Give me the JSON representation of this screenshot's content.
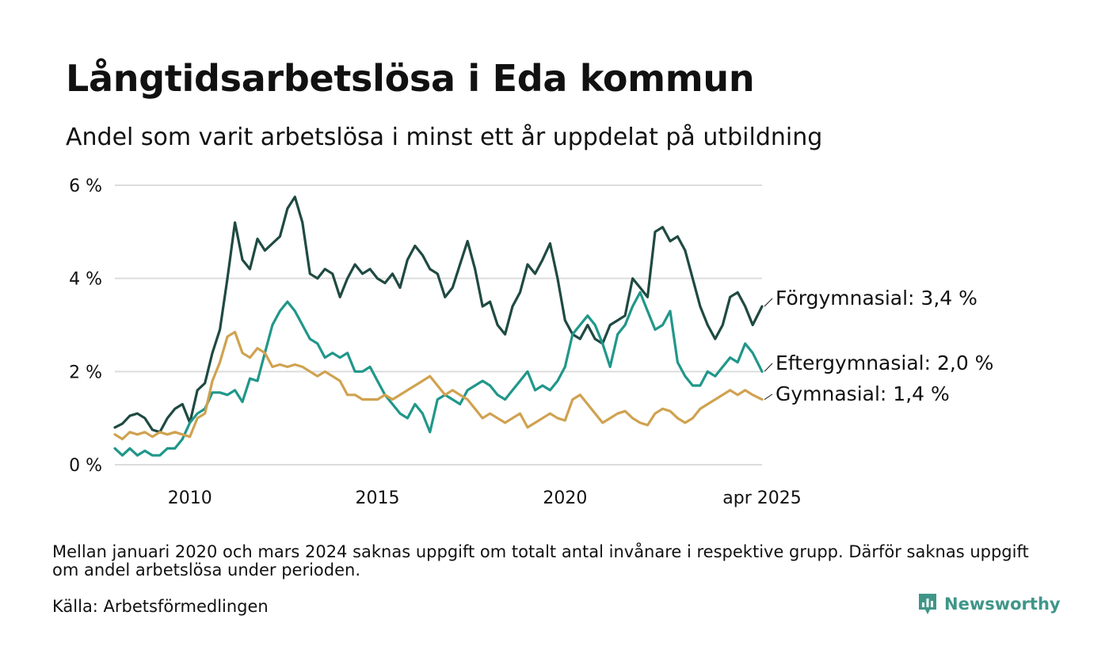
{
  "title": "Långtidsarbetslösa i Eda kommun",
  "subtitle": "Andel som varit arbetslösa i minst ett år uppdelat på utbildning",
  "note": "Mellan januari 2020 och mars 2024 saknas uppgift om totalt antal invånare i respektive grupp. Därför saknas uppgift om andel arbetslösa under perioden.",
  "source": "Källa: Arbetsförmedlingen",
  "brand": {
    "name": "Newsworthy",
    "icon": "newsworthy-logo-icon",
    "color": "#3f9688"
  },
  "chart_data": {
    "type": "line",
    "title": "Långtidsarbetslösa i Eda kommun",
    "subtitle": "Andel som varit arbetslösa i minst ett år uppdelat på utbildning",
    "x_unit": "year",
    "xlim": [
      2008.0,
      2025.25
    ],
    "ylim": [
      0,
      6
    ],
    "y_ticks": [
      {
        "value": 0,
        "label": "0 %"
      },
      {
        "value": 2,
        "label": "2 %"
      },
      {
        "value": 4,
        "label": "4 %"
      },
      {
        "value": 6,
        "label": "6 %"
      }
    ],
    "x_ticks": [
      {
        "value": 2010,
        "label": "2010"
      },
      {
        "value": 2015,
        "label": "2015"
      },
      {
        "value": 2020,
        "label": "2020"
      },
      {
        "value": 2025.25,
        "label": "apr 2025"
      }
    ],
    "grid": true,
    "legend": "direct-labels-right",
    "series": [
      {
        "name": "Förgymnasial",
        "label": "Förgymnasial: 3,4 %",
        "color": "#1f4a42",
        "points": [
          [
            2008.0,
            0.8
          ],
          [
            2008.2,
            0.88
          ],
          [
            2008.4,
            1.05
          ],
          [
            2008.6,
            1.1
          ],
          [
            2008.8,
            1.0
          ],
          [
            2009.0,
            0.75
          ],
          [
            2009.2,
            0.7
          ],
          [
            2009.4,
            1.0
          ],
          [
            2009.6,
            1.2
          ],
          [
            2009.8,
            1.3
          ],
          [
            2010.0,
            0.9
          ],
          [
            2010.2,
            1.6
          ],
          [
            2010.4,
            1.75
          ],
          [
            2010.6,
            2.4
          ],
          [
            2010.8,
            2.9
          ],
          [
            2011.0,
            4.0
          ],
          [
            2011.2,
            5.2
          ],
          [
            2011.4,
            4.4
          ],
          [
            2011.6,
            4.2
          ],
          [
            2011.8,
            4.85
          ],
          [
            2012.0,
            4.6
          ],
          [
            2012.2,
            4.75
          ],
          [
            2012.4,
            4.9
          ],
          [
            2012.6,
            5.5
          ],
          [
            2012.8,
            5.75
          ],
          [
            2013.0,
            5.2
          ],
          [
            2013.2,
            4.1
          ],
          [
            2013.4,
            4.0
          ],
          [
            2013.6,
            4.2
          ],
          [
            2013.8,
            4.1
          ],
          [
            2014.0,
            3.6
          ],
          [
            2014.2,
            4.0
          ],
          [
            2014.4,
            4.3
          ],
          [
            2014.6,
            4.1
          ],
          [
            2014.8,
            4.2
          ],
          [
            2015.0,
            4.0
          ],
          [
            2015.2,
            3.9
          ],
          [
            2015.4,
            4.1
          ],
          [
            2015.6,
            3.8
          ],
          [
            2015.8,
            4.4
          ],
          [
            2016.0,
            4.7
          ],
          [
            2016.2,
            4.5
          ],
          [
            2016.4,
            4.2
          ],
          [
            2016.6,
            4.1
          ],
          [
            2016.8,
            3.6
          ],
          [
            2017.0,
            3.8
          ],
          [
            2017.2,
            4.3
          ],
          [
            2017.4,
            4.8
          ],
          [
            2017.6,
            4.2
          ],
          [
            2017.8,
            3.4
          ],
          [
            2018.0,
            3.5
          ],
          [
            2018.2,
            3.0
          ],
          [
            2018.4,
            2.8
          ],
          [
            2018.6,
            3.4
          ],
          [
            2018.8,
            3.7
          ],
          [
            2019.0,
            4.3
          ],
          [
            2019.2,
            4.1
          ],
          [
            2019.4,
            4.4
          ],
          [
            2019.6,
            4.75
          ],
          [
            2019.8,
            4.0
          ],
          [
            2020.0,
            3.1
          ],
          [
            2020.2,
            2.8
          ],
          [
            2020.4,
            2.7
          ],
          [
            2020.6,
            3.0
          ],
          [
            2020.8,
            2.7
          ],
          [
            2021.0,
            2.6
          ],
          [
            2021.2,
            3.0
          ],
          [
            2021.4,
            3.1
          ],
          [
            2021.6,
            3.2
          ],
          [
            2021.8,
            4.0
          ],
          [
            2022.0,
            3.8
          ],
          [
            2022.2,
            3.6
          ],
          [
            2022.4,
            5.0
          ],
          [
            2022.6,
            5.1
          ],
          [
            2022.8,
            4.8
          ],
          [
            2023.0,
            4.9
          ],
          [
            2023.2,
            4.6
          ],
          [
            2023.4,
            4.0
          ],
          [
            2023.6,
            3.4
          ],
          [
            2023.8,
            3.0
          ],
          [
            2024.0,
            2.7
          ],
          [
            2024.2,
            3.0
          ],
          [
            2024.4,
            3.6
          ],
          [
            2024.6,
            3.7
          ],
          [
            2024.8,
            3.4
          ],
          [
            2025.0,
            3.0
          ],
          [
            2025.25,
            3.4
          ]
        ]
      },
      {
        "name": "Eftergymnasial",
        "label": "Eftergymnasial: 2,0 %",
        "color": "#20978a",
        "points": [
          [
            2008.0,
            0.35
          ],
          [
            2008.2,
            0.2
          ],
          [
            2008.4,
            0.35
          ],
          [
            2008.6,
            0.2
          ],
          [
            2008.8,
            0.3
          ],
          [
            2009.0,
            0.2
          ],
          [
            2009.2,
            0.2
          ],
          [
            2009.4,
            0.35
          ],
          [
            2009.6,
            0.35
          ],
          [
            2009.8,
            0.55
          ],
          [
            2010.0,
            0.9
          ],
          [
            2010.2,
            1.1
          ],
          [
            2010.4,
            1.2
          ],
          [
            2010.6,
            1.55
          ],
          [
            2010.8,
            1.55
          ],
          [
            2011.0,
            1.5
          ],
          [
            2011.2,
            1.6
          ],
          [
            2011.4,
            1.35
          ],
          [
            2011.6,
            1.85
          ],
          [
            2011.8,
            1.8
          ],
          [
            2012.0,
            2.4
          ],
          [
            2012.2,
            3.0
          ],
          [
            2012.4,
            3.3
          ],
          [
            2012.6,
            3.5
          ],
          [
            2012.8,
            3.3
          ],
          [
            2013.0,
            3.0
          ],
          [
            2013.2,
            2.7
          ],
          [
            2013.4,
            2.6
          ],
          [
            2013.6,
            2.3
          ],
          [
            2013.8,
            2.4
          ],
          [
            2014.0,
            2.3
          ],
          [
            2014.2,
            2.4
          ],
          [
            2014.4,
            2.0
          ],
          [
            2014.6,
            2.0
          ],
          [
            2014.8,
            2.1
          ],
          [
            2015.0,
            1.8
          ],
          [
            2015.2,
            1.5
          ],
          [
            2015.4,
            1.3
          ],
          [
            2015.6,
            1.1
          ],
          [
            2015.8,
            1.0
          ],
          [
            2016.0,
            1.3
          ],
          [
            2016.2,
            1.1
          ],
          [
            2016.4,
            0.7
          ],
          [
            2016.6,
            1.4
          ],
          [
            2016.8,
            1.5
          ],
          [
            2017.0,
            1.4
          ],
          [
            2017.2,
            1.3
          ],
          [
            2017.4,
            1.6
          ],
          [
            2017.6,
            1.7
          ],
          [
            2017.8,
            1.8
          ],
          [
            2018.0,
            1.7
          ],
          [
            2018.2,
            1.5
          ],
          [
            2018.4,
            1.4
          ],
          [
            2018.6,
            1.6
          ],
          [
            2018.8,
            1.8
          ],
          [
            2019.0,
            2.0
          ],
          [
            2019.2,
            1.6
          ],
          [
            2019.4,
            1.7
          ],
          [
            2019.6,
            1.6
          ],
          [
            2019.8,
            1.8
          ],
          [
            2020.0,
            2.1
          ],
          [
            2020.2,
            2.8
          ],
          [
            2020.4,
            3.0
          ],
          [
            2020.6,
            3.2
          ],
          [
            2020.8,
            3.0
          ],
          [
            2021.0,
            2.6
          ],
          [
            2021.2,
            2.1
          ],
          [
            2021.4,
            2.8
          ],
          [
            2021.6,
            3.0
          ],
          [
            2021.8,
            3.4
          ],
          [
            2022.0,
            3.7
          ],
          [
            2022.2,
            3.3
          ],
          [
            2022.4,
            2.9
          ],
          [
            2022.6,
            3.0
          ],
          [
            2022.8,
            3.3
          ],
          [
            2023.0,
            2.2
          ],
          [
            2023.2,
            1.9
          ],
          [
            2023.4,
            1.7
          ],
          [
            2023.6,
            1.7
          ],
          [
            2023.8,
            2.0
          ],
          [
            2024.0,
            1.9
          ],
          [
            2024.2,
            2.1
          ],
          [
            2024.4,
            2.3
          ],
          [
            2024.6,
            2.2
          ],
          [
            2024.8,
            2.6
          ],
          [
            2025.0,
            2.4
          ],
          [
            2025.25,
            2.0
          ]
        ]
      },
      {
        "name": "Gymnasial",
        "label": "Gymnasial: 1,4 %",
        "color": "#d0a250",
        "points": [
          [
            2008.0,
            0.65
          ],
          [
            2008.2,
            0.55
          ],
          [
            2008.4,
            0.7
          ],
          [
            2008.6,
            0.65
          ],
          [
            2008.8,
            0.7
          ],
          [
            2009.0,
            0.6
          ],
          [
            2009.2,
            0.7
          ],
          [
            2009.4,
            0.65
          ],
          [
            2009.6,
            0.7
          ],
          [
            2009.8,
            0.65
          ],
          [
            2010.0,
            0.6
          ],
          [
            2010.2,
            1.0
          ],
          [
            2010.4,
            1.1
          ],
          [
            2010.6,
            1.8
          ],
          [
            2010.8,
            2.2
          ],
          [
            2011.0,
            2.75
          ],
          [
            2011.2,
            2.85
          ],
          [
            2011.4,
            2.4
          ],
          [
            2011.6,
            2.3
          ],
          [
            2011.8,
            2.5
          ],
          [
            2012.0,
            2.4
          ],
          [
            2012.2,
            2.1
          ],
          [
            2012.4,
            2.15
          ],
          [
            2012.6,
            2.1
          ],
          [
            2012.8,
            2.15
          ],
          [
            2013.0,
            2.1
          ],
          [
            2013.2,
            2.0
          ],
          [
            2013.4,
            1.9
          ],
          [
            2013.6,
            2.0
          ],
          [
            2013.8,
            1.9
          ],
          [
            2014.0,
            1.8
          ],
          [
            2014.2,
            1.5
          ],
          [
            2014.4,
            1.5
          ],
          [
            2014.6,
            1.4
          ],
          [
            2014.8,
            1.4
          ],
          [
            2015.0,
            1.4
          ],
          [
            2015.2,
            1.5
          ],
          [
            2015.4,
            1.4
          ],
          [
            2015.6,
            1.5
          ],
          [
            2015.8,
            1.6
          ],
          [
            2016.0,
            1.7
          ],
          [
            2016.2,
            1.8
          ],
          [
            2016.4,
            1.9
          ],
          [
            2016.6,
            1.7
          ],
          [
            2016.8,
            1.5
          ],
          [
            2017.0,
            1.6
          ],
          [
            2017.2,
            1.5
          ],
          [
            2017.4,
            1.4
          ],
          [
            2017.6,
            1.2
          ],
          [
            2017.8,
            1.0
          ],
          [
            2018.0,
            1.1
          ],
          [
            2018.2,
            1.0
          ],
          [
            2018.4,
            0.9
          ],
          [
            2018.6,
            1.0
          ],
          [
            2018.8,
            1.1
          ],
          [
            2019.0,
            0.8
          ],
          [
            2019.2,
            0.9
          ],
          [
            2019.4,
            1.0
          ],
          [
            2019.6,
            1.1
          ],
          [
            2019.8,
            1.0
          ],
          [
            2020.0,
            0.95
          ],
          [
            2020.2,
            1.4
          ],
          [
            2020.4,
            1.5
          ],
          [
            2020.6,
            1.3
          ],
          [
            2020.8,
            1.1
          ],
          [
            2021.0,
            0.9
          ],
          [
            2021.2,
            1.0
          ],
          [
            2021.4,
            1.1
          ],
          [
            2021.6,
            1.15
          ],
          [
            2021.8,
            1.0
          ],
          [
            2022.0,
            0.9
          ],
          [
            2022.2,
            0.85
          ],
          [
            2022.4,
            1.1
          ],
          [
            2022.6,
            1.2
          ],
          [
            2022.8,
            1.15
          ],
          [
            2023.0,
            1.0
          ],
          [
            2023.2,
            0.9
          ],
          [
            2023.4,
            1.0
          ],
          [
            2023.6,
            1.2
          ],
          [
            2023.8,
            1.3
          ],
          [
            2024.0,
            1.4
          ],
          [
            2024.2,
            1.5
          ],
          [
            2024.4,
            1.6
          ],
          [
            2024.6,
            1.5
          ],
          [
            2024.8,
            1.6
          ],
          [
            2025.0,
            1.5
          ],
          [
            2025.25,
            1.4
          ]
        ]
      }
    ]
  }
}
